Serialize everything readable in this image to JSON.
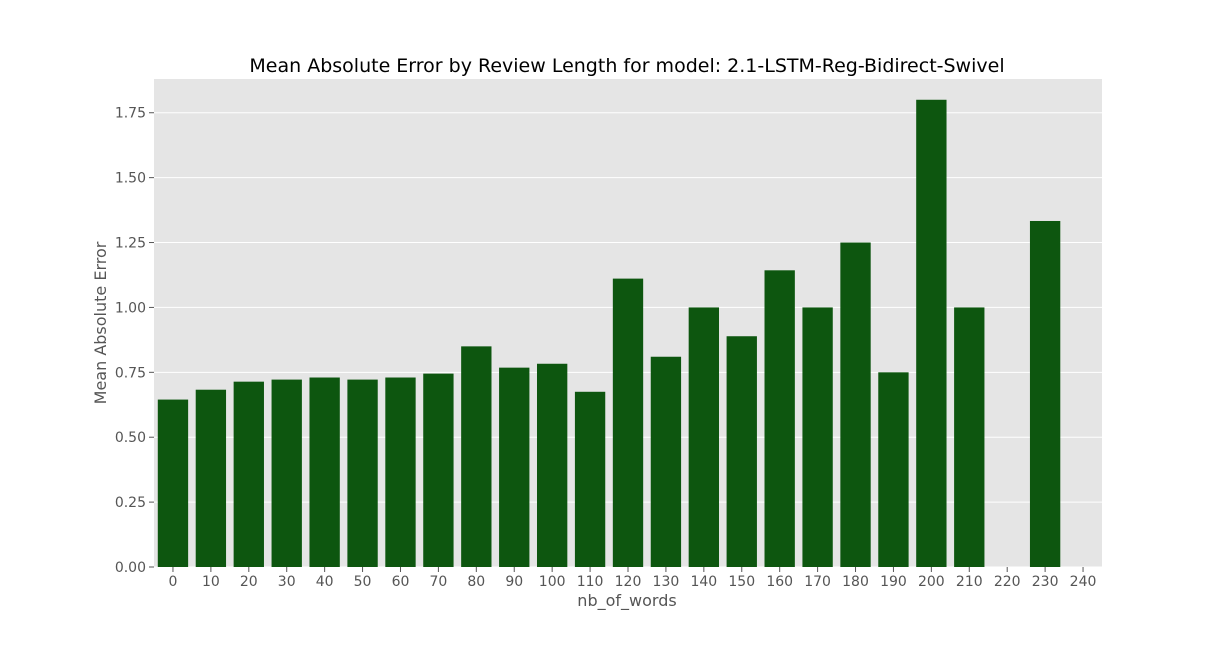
{
  "chart_data": {
    "type": "bar",
    "title": "Mean Absolute Error by Review Length for model: 2.1-LSTM-Reg-Bidirect-Swivel",
    "xlabel": "nb_of_words",
    "ylabel": "Mean Absolute Error",
    "categories": [
      "0",
      "10",
      "20",
      "30",
      "40",
      "50",
      "60",
      "70",
      "80",
      "90",
      "100",
      "110",
      "120",
      "130",
      "140",
      "150",
      "160",
      "170",
      "180",
      "190",
      "200",
      "210",
      "220",
      "230",
      "240"
    ],
    "values": [
      0.645,
      0.683,
      0.714,
      0.722,
      0.73,
      0.722,
      0.73,
      0.745,
      0.85,
      0.768,
      0.783,
      0.675,
      1.111,
      0.81,
      1.0,
      0.889,
      1.143,
      1.0,
      1.25,
      0.75,
      1.8,
      1.0,
      null,
      1.333,
      null
    ],
    "ylim": [
      0,
      1.88
    ],
    "yticks": [
      0.0,
      0.25,
      0.5,
      0.75,
      1.0,
      1.25,
      1.5,
      1.75
    ],
    "ytick_labels": [
      "0.00",
      "0.25",
      "0.50",
      "0.75",
      "1.00",
      "1.25",
      "1.50",
      "1.75"
    ],
    "grid": true,
    "colors": {
      "bar": "#0d560f",
      "plot_background": "#e5e5e5",
      "grid": "#ffffff",
      "tick_text": "#555555",
      "title_text": "#000000"
    }
  }
}
